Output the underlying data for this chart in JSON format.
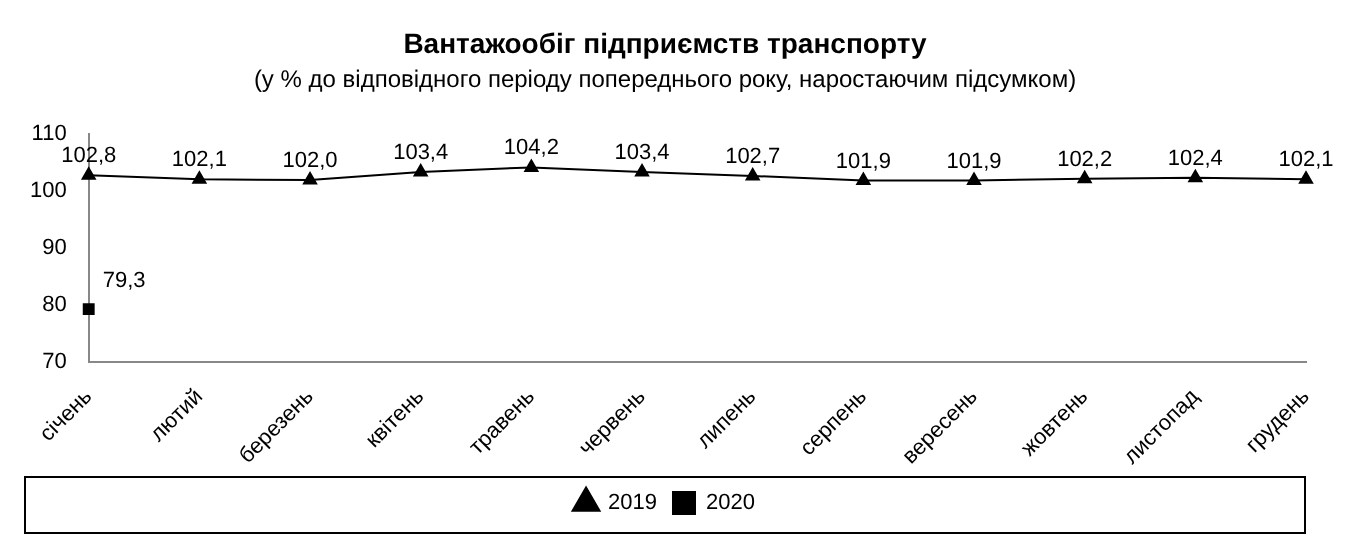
{
  "chart_data": {
    "type": "line",
    "title": "Вантажообіг підприємств транспорту",
    "subtitle": "(у % до відповідного періоду попереднього року, наростаючим підсумком)",
    "categories": [
      "січень",
      "лютий",
      "березень",
      "квітень",
      "травень",
      "червень",
      "липень",
      "серпень",
      "вересень",
      "жовтень",
      "листопад",
      "грудень"
    ],
    "series": [
      {
        "name": "2019",
        "color": "#000000",
        "marker": "triangle",
        "values": [
          102.8,
          102.1,
          102.0,
          103.4,
          104.2,
          103.4,
          102.7,
          101.9,
          101.9,
          102.2,
          102.4,
          102.1
        ],
        "value_labels": [
          "102,8",
          "102,1",
          "102,0",
          "103,4",
          "104,2",
          "103,4",
          "102,7",
          "101,9",
          "101,9",
          "102,2",
          "102,4",
          "102,1"
        ]
      },
      {
        "name": "2020",
        "color": "#000000",
        "marker": "square",
        "values": [
          79.3,
          null,
          null,
          null,
          null,
          null,
          null,
          null,
          null,
          null,
          null,
          null
        ],
        "value_labels": [
          "79,3",
          null,
          null,
          null,
          null,
          null,
          null,
          null,
          null,
          null,
          null,
          null
        ]
      }
    ],
    "ylim": [
      70,
      110
    ],
    "yticks": [
      70,
      80,
      90,
      100,
      110
    ],
    "grid": false,
    "legend": "bottom"
  }
}
